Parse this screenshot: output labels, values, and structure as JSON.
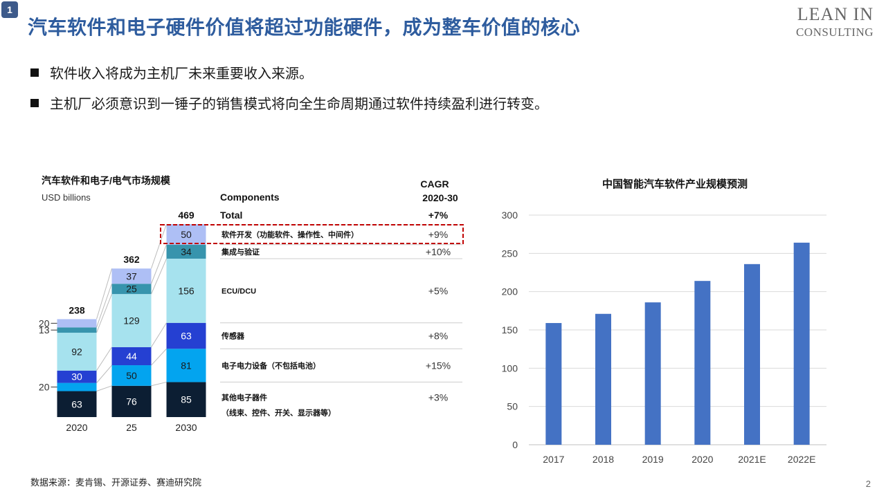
{
  "slide_number": "1",
  "title": "汽车软件和电子硬件价值将超过功能硬件，成为整车价值的核心",
  "logo": {
    "line1": "LEAN IN",
    "line2": "CONSULTING"
  },
  "bullets": [
    "软件收入将成为主机厂未来重要收入来源。",
    "主机厂必须意识到一锤子的销售模式将向全生命周期通过软件持续盈利进行转变。"
  ],
  "source": "数据来源：麦肯锡、开源证券、赛迪研究院",
  "page_number": "2",
  "chart_data": [
    {
      "type": "bar",
      "stacked": true,
      "title": "汽车软件和电子/电气市场规模",
      "subtitle": "USD billions",
      "components_header": "Components",
      "cagr_header_line1": "CAGR",
      "cagr_header_line2": "2020-30",
      "total_label": "Total",
      "total_cagr": "+7%",
      "categories": [
        "2020",
        "25",
        "2030"
      ],
      "totals": [
        238,
        362,
        469
      ],
      "series": [
        {
          "name": "其他电子器件",
          "name_line2": "（线束、控件、开关、显示器等）",
          "cagr": "+3%",
          "color": "#0c1e33",
          "values": [
            63,
            76,
            85
          ]
        },
        {
          "name": "电子电力设备（不包括电池）",
          "cagr": "+15%",
          "color": "#03a4ef",
          "values": [
            20,
            50,
            81
          ]
        },
        {
          "name": "传感器",
          "cagr": "+8%",
          "color": "#2540d2",
          "values": [
            30,
            44,
            63
          ]
        },
        {
          "name": "ECU/DCU",
          "cagr": "+5%",
          "color": "#a6e2ee",
          "values": [
            92,
            129,
            156
          ]
        },
        {
          "name": "集成与验证",
          "cagr": "+10%",
          "color": "#3794ad",
          "values": [
            13,
            25,
            34
          ]
        },
        {
          "name": "软件开发（功能软件、操作性、中间件）",
          "cagr": "+9%",
          "color": "#aebff5",
          "values": [
            20,
            37,
            50
          ]
        }
      ],
      "highlighted_series": "软件开发（功能软件、操作性、中间件）"
    },
    {
      "type": "bar",
      "title": "中国智能汽车软件产业规模预测",
      "categories": [
        "2017",
        "2018",
        "2019",
        "2020",
        "2021E",
        "2022E"
      ],
      "values": [
        159,
        171,
        186,
        214,
        236,
        264
      ],
      "ylim": [
        0,
        300
      ],
      "yticks": [
        0,
        50,
        100,
        150,
        200,
        250,
        300
      ],
      "grid": true,
      "bar_color": "#4472c4"
    }
  ]
}
